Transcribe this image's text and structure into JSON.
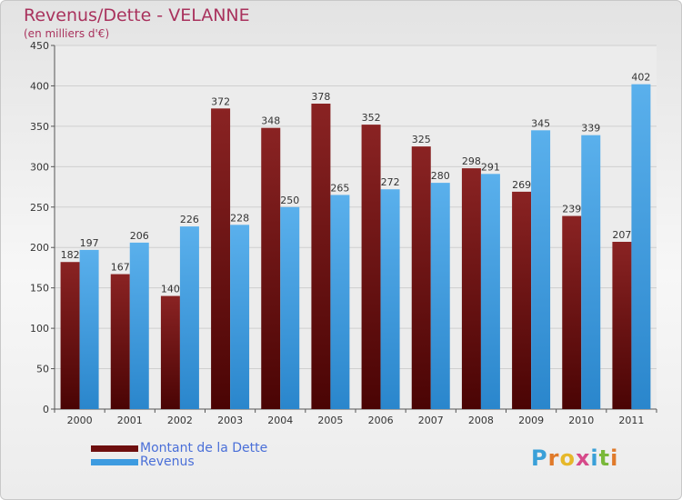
{
  "title": "Revenus/Dette - VELANNE",
  "subtitle": "(en milliers d'€)",
  "logo": {
    "text": "Proxiti",
    "letters": [
      {
        "ch": "P",
        "color": "#3aa0d8"
      },
      {
        "ch": "r",
        "color": "#e07a2a"
      },
      {
        "ch": "o",
        "color": "#e6b82a"
      },
      {
        "ch": "x",
        "color": "#d64a8a"
      },
      {
        "ch": "i",
        "color": "#3aa0d8"
      },
      {
        "ch": "t",
        "color": "#7ab83a"
      },
      {
        "ch": "i",
        "color": "#e07a2a"
      }
    ]
  },
  "legend": [
    {
      "label": "Montant de la Dette",
      "color": "#6e0f0f"
    },
    {
      "label": "Revenus",
      "color": "#3d9be0"
    }
  ],
  "chart_data": {
    "type": "bar",
    "title": "Revenus/Dette - VELANNE",
    "subtitle": "(en milliers d'€)",
    "categories": [
      "2000",
      "2001",
      "2002",
      "2003",
      "2004",
      "2005",
      "2006",
      "2007",
      "2008",
      "2009",
      "2010",
      "2011"
    ],
    "series": [
      {
        "name": "Montant de la Dette",
        "color": "#6e0f0f",
        "values": [
          182,
          167,
          140,
          372,
          348,
          378,
          352,
          325,
          298,
          269,
          239,
          207
        ]
      },
      {
        "name": "Revenus",
        "color": "#3d9be0",
        "values": [
          197,
          206,
          226,
          228,
          250,
          265,
          272,
          280,
          291,
          345,
          339,
          402
        ]
      }
    ],
    "ylim": [
      0,
      450
    ],
    "yticks": [
      0,
      50,
      100,
      150,
      200,
      250,
      300,
      350,
      400,
      450
    ],
    "grid": true,
    "legend_position": "bottom-left"
  }
}
